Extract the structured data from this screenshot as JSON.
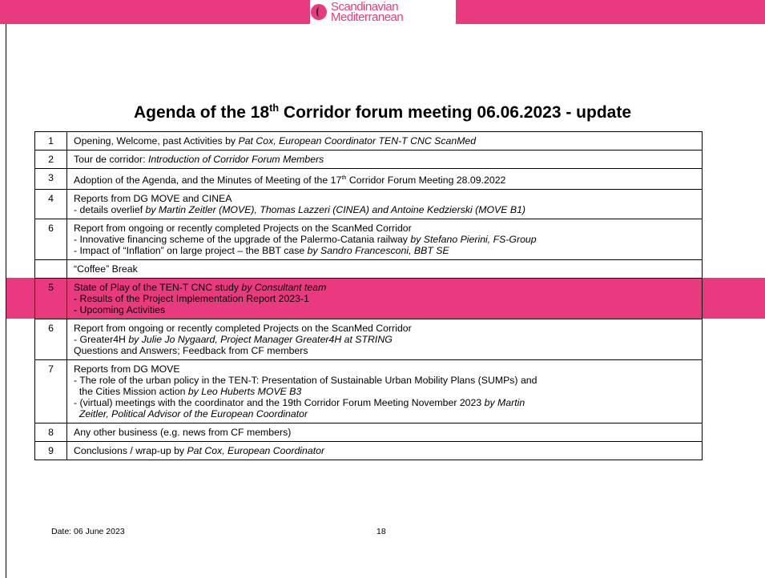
{
  "header": {
    "logo": [
      "Scandinavian",
      "Mediterranean"
    ]
  },
  "title": [
    {
      "text": "Agenda of the 18",
      "style": "normal"
    },
    {
      "text": "th",
      "style": "sup"
    },
    {
      "text": " Corridor forum meeting 06.06.2023 - update",
      "style": "normal"
    }
  ],
  "table": {
    "highlight_row": 6,
    "rows": [
      {
        "num": "1",
        "lines": [
          [
            {
              "text": "Opening, Welcome, past Activities by ",
              "style": "normal"
            },
            {
              "text": "Pat Cox, European Coordinator TEN-T CNC ScanMed",
              "style": "italic"
            }
          ]
        ]
      },
      {
        "num": "2",
        "lines": [
          [
            {
              "text": "Tour de corridor: ",
              "style": "normal"
            },
            {
              "text": "Introduction of Corridor Forum Members",
              "style": "italic"
            }
          ]
        ]
      },
      {
        "num": "3",
        "lines": [
          [
            {
              "text": "Adoption of the Agenda, and the Minutes of Meeting of the 17",
              "style": "normal"
            },
            {
              "text": "th",
              "style": "sup"
            },
            {
              "text": " Corridor Forum Meeting 28.09.2022",
              "style": "normal"
            }
          ]
        ]
      },
      {
        "num": "4",
        "lines": [
          [
            {
              "text": "Reports from DG MOVE and CINEA",
              "style": "normal"
            }
          ],
          [
            {
              "text": "- details overlief ",
              "style": "normal"
            },
            {
              "text": "by Martin Zeitler (MOVE), Thomas Lazzeri (CINEA) and Antoine Kedzierski (MOVE B1)",
              "style": "italic"
            }
          ]
        ]
      },
      {
        "num": "6",
        "lines": [
          [
            {
              "text": "Report from ongoing or recently completed Projects on the ScanMed Corridor",
              "style": "normal"
            }
          ],
          [
            {
              "text": "- Innovative financing scheme of the upgrade of the Palermo-Catania railway ",
              "style": "normal"
            },
            {
              "text": "by Stefano Pierini, FS-Group",
              "style": "italic"
            }
          ],
          [
            {
              "text": "- Impact of “Inflation” on large project – the BBT case ",
              "style": "normal"
            },
            {
              "text": "by Sandro Francesconi, BBT SE",
              "style": "italic"
            }
          ]
        ]
      },
      {
        "num": null,
        "lines": [
          [
            {
              "text": "“Coffee” Break",
              "style": "normal"
            }
          ]
        ]
      },
      {
        "num": "5",
        "lines": [
          [
            {
              "text": "State of Play of the TEN-T CNC study ",
              "style": "normal"
            },
            {
              "text": "by Consultant team",
              "style": "italic"
            }
          ],
          [
            {
              "text": "- Results of the Project Implementation Report 2023-1",
              "style": "normal"
            }
          ],
          [
            {
              "text": "- Upcoming Activities",
              "style": "normal"
            }
          ]
        ]
      },
      {
        "num": "6",
        "lines": [
          [
            {
              "text": "Report from ongoing or recently completed Projects on the ScanMed Corridor",
              "style": "normal"
            }
          ],
          [
            {
              "text": "- Greater4H ",
              "style": "normal"
            },
            {
              "text": "by Julie Jo Nygaard, Project Manager Greater4H at STRING",
              "style": "italic"
            }
          ],
          [
            {
              "text": "Questions and Answers; Feedback from CF members",
              "style": "normal"
            }
          ]
        ]
      },
      {
        "num": "7",
        "lines": [
          [
            {
              "text": "Reports from DG MOVE",
              "style": "normal"
            }
          ],
          [
            {
              "text": "- The role of the urban policy in the TEN-T: Presentation of Sustainable Urban Mobility Plans (SUMPs) and",
              "style": "normal"
            }
          ],
          [
            {
              "text": "  the Cities Mission action ",
              "style": "normal"
            },
            {
              "text": "by Leo Huberts MOVE B3",
              "style": "italic"
            }
          ],
          [
            {
              "text": "- (virtual) meetings with the coordinator and the 19th Corridor Forum Meeting November 2023 ",
              "style": "normal"
            },
            {
              "text": "by Martin",
              "style": "italic"
            }
          ],
          [
            {
              "text": "  Zeitler, Political Advisor of the European Coordinator",
              "style": "italic"
            }
          ]
        ]
      },
      {
        "num": "8",
        "lines": [
          [
            {
              "text": "Any other business (e.g. news from CF members)",
              "style": "normal"
            }
          ]
        ]
      },
      {
        "num": "9",
        "lines": [
          [
            {
              "text": "Conclusions / wrap-up by ",
              "style": "normal"
            },
            {
              "text": "Pat Cox, European Coordinator",
              "style": "italic"
            }
          ]
        ]
      }
    ]
  },
  "footer": {
    "date": "Date: 06 June 2023",
    "page": "18"
  }
}
